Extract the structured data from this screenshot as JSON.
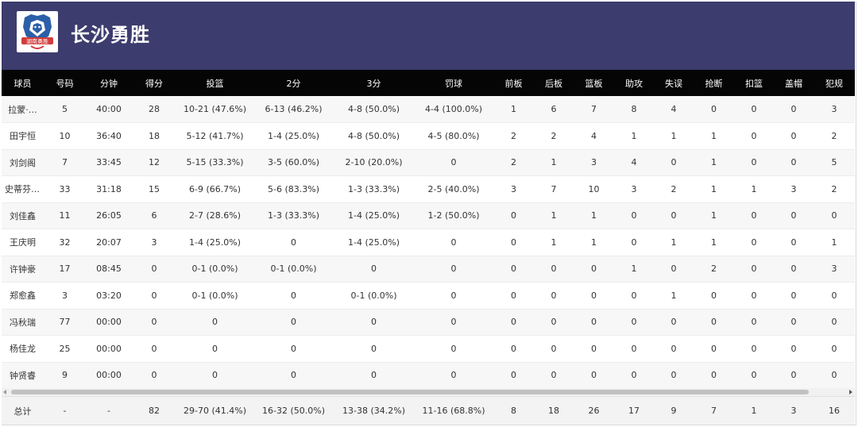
{
  "team": {
    "name": "长沙勇胜",
    "logo_text": "湖南勇胜",
    "logo_colors": {
      "lion": "#2b5fa8",
      "banner": "#d23c3c"
    }
  },
  "columns": [
    "球员",
    "号码",
    "分钟",
    "得分",
    "投篮",
    "2分",
    "3分",
    "罚球",
    "前板",
    "后板",
    "篮板",
    "助攻",
    "失误",
    "抢断",
    "扣篮",
    "盖帽",
    "犯规"
  ],
  "players": [
    [
      "拉蒙·…",
      "5",
      "40:00",
      "28",
      "10-21 (47.6%)",
      "6-13 (46.2%)",
      "4-8 (50.0%)",
      "4-4 (100.0%)",
      "1",
      "6",
      "7",
      "8",
      "4",
      "0",
      "0",
      "0",
      "3"
    ],
    [
      "田宇恒",
      "10",
      "36:40",
      "18",
      "5-12 (41.7%)",
      "1-4 (25.0%)",
      "4-8 (50.0%)",
      "4-5 (80.0%)",
      "2",
      "2",
      "4",
      "1",
      "1",
      "1",
      "0",
      "0",
      "2"
    ],
    [
      "刘剑阁",
      "7",
      "33:45",
      "12",
      "5-15 (33.3%)",
      "3-5 (60.0%)",
      "2-10 (20.0%)",
      "0",
      "2",
      "1",
      "3",
      "4",
      "0",
      "1",
      "0",
      "0",
      "5"
    ],
    [
      "史蒂芬·…",
      "33",
      "31:18",
      "15",
      "6-9 (66.7%)",
      "5-6 (83.3%)",
      "1-3 (33.3%)",
      "2-5 (40.0%)",
      "3",
      "7",
      "10",
      "3",
      "2",
      "1",
      "1",
      "3",
      "2"
    ],
    [
      "刘佳鑫",
      "11",
      "26:05",
      "6",
      "2-7 (28.6%)",
      "1-3 (33.3%)",
      "1-4 (25.0%)",
      "1-2 (50.0%)",
      "0",
      "1",
      "1",
      "0",
      "0",
      "1",
      "0",
      "0",
      "0"
    ],
    [
      "王庆明",
      "32",
      "20:07",
      "3",
      "1-4 (25.0%)",
      "0",
      "1-4 (25.0%)",
      "0",
      "0",
      "1",
      "1",
      "0",
      "1",
      "1",
      "0",
      "0",
      "1"
    ],
    [
      "许钟豪",
      "17",
      "08:45",
      "0",
      "0-1 (0.0%)",
      "0-1 (0.0%)",
      "0",
      "0",
      "0",
      "0",
      "0",
      "1",
      "0",
      "2",
      "0",
      "0",
      "3"
    ],
    [
      "郑愈鑫",
      "3",
      "03:20",
      "0",
      "0-1 (0.0%)",
      "0",
      "0-1 (0.0%)",
      "0",
      "0",
      "0",
      "0",
      "0",
      "1",
      "0",
      "0",
      "0",
      "0"
    ],
    [
      "冯秋瑞",
      "77",
      "00:00",
      "0",
      "0",
      "0",
      "0",
      "0",
      "0",
      "0",
      "0",
      "0",
      "0",
      "0",
      "0",
      "0",
      "0"
    ],
    [
      "杨佳龙",
      "25",
      "00:00",
      "0",
      "0",
      "0",
      "0",
      "0",
      "0",
      "0",
      "0",
      "0",
      "0",
      "0",
      "0",
      "0",
      "0"
    ],
    [
      "钟贤睿",
      "9",
      "00:00",
      "0",
      "0",
      "0",
      "0",
      "0",
      "0",
      "0",
      "0",
      "0",
      "0",
      "0",
      "0",
      "0",
      "0"
    ]
  ],
  "totals": [
    "总计",
    "-",
    "-",
    "82",
    "29-70 (41.4%)",
    "16-32 (50.0%)",
    "13-38 (34.2%)",
    "11-16 (68.8%)",
    "8",
    "18",
    "26",
    "17",
    "9",
    "7",
    "1",
    "3",
    "16"
  ]
}
